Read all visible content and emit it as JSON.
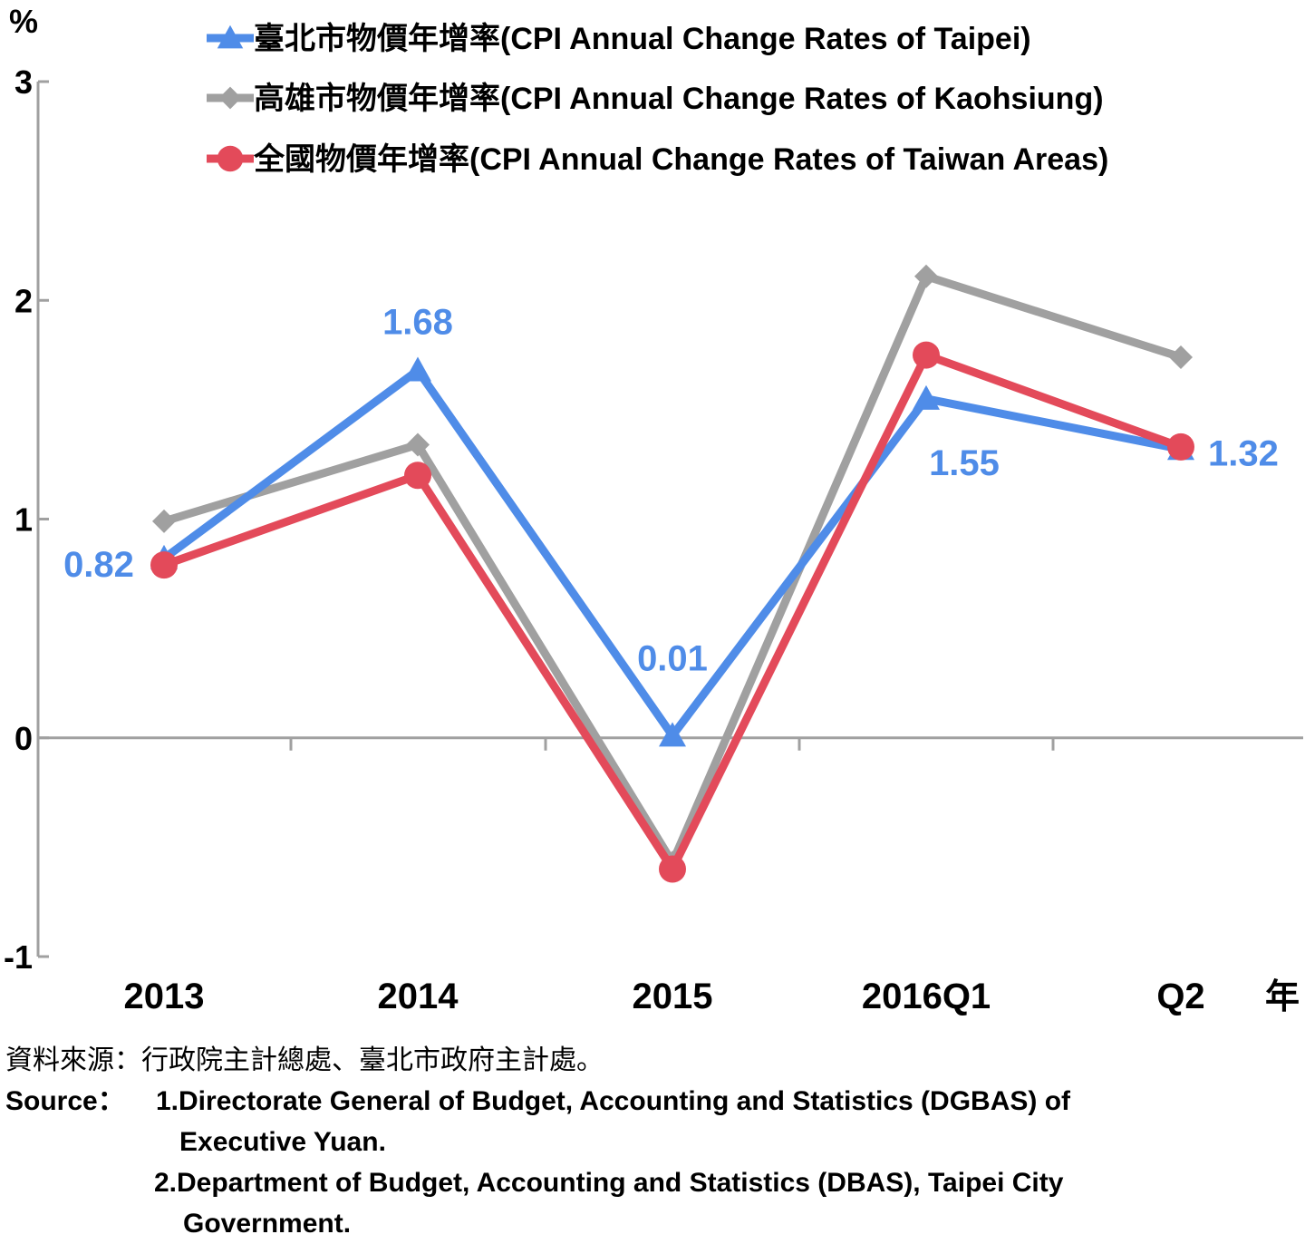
{
  "chart_data": {
    "type": "line",
    "y_unit": "%",
    "x_unit": "年",
    "categories": [
      "2013",
      "2014",
      "2015",
      "2016Q1",
      "Q2"
    ],
    "ylim": [
      -1,
      3
    ],
    "yticks": [
      "3",
      "2",
      "1",
      "0",
      "-1"
    ],
    "grid": false,
    "legend_position": "top-right",
    "series": [
      {
        "name": "臺北市物價年增率(CPI Annual Change Rates of Taipei)",
        "marker": "triangle",
        "color": "#4F8CE8",
        "values": [
          0.82,
          1.68,
          0.01,
          1.55,
          1.32
        ],
        "labels": [
          "0.82",
          "1.68",
          "0.01",
          "1.55",
          "1.32"
        ]
      },
      {
        "name": "高雄市物價年增率(CPI Annual Change Rates of Kaohsiung)",
        "marker": "diamond",
        "color": "#A0A0A0",
        "values": [
          0.99,
          1.34,
          -0.57,
          2.11,
          1.74
        ]
      },
      {
        "name": "全國物價年增率(CPI Annual Change Rates of Taiwan Areas)",
        "marker": "circle",
        "color": "#E34A5A",
        "values": [
          0.79,
          1.2,
          -0.6,
          1.75,
          1.33
        ]
      }
    ]
  },
  "source": {
    "zh": "資料來源：行政院主計總處、臺北市政府主計處。",
    "en_label": "Source：",
    "en_line1": "1.Directorate General of Budget, Accounting and Statistics (DGBAS) of",
    "en_line2": "Executive Yuan.",
    "en_line3": "2.Department of Budget, Accounting and Statistics (DBAS), Taipei City",
    "en_line4": "Government."
  }
}
